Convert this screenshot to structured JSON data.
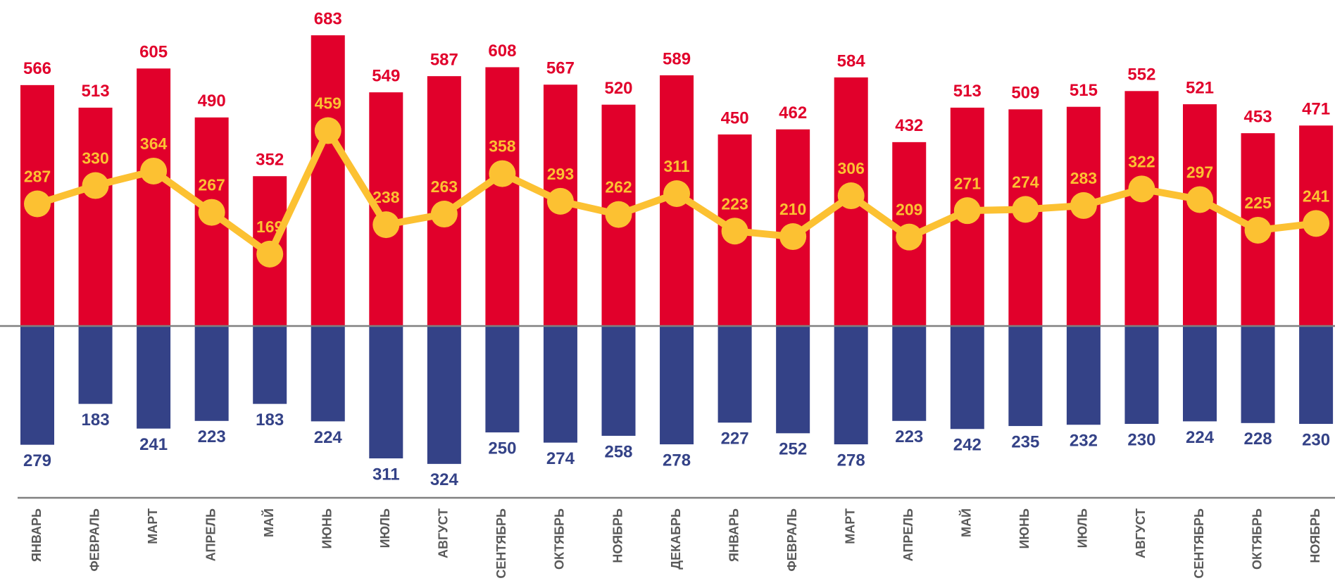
{
  "chart_data": {
    "type": "bar",
    "categories": [
      "ЯНВАРЬ",
      "ФЕВРАЛЬ",
      "МАРТ",
      "АПРЕЛЬ",
      "МАЙ",
      "ИЮНЬ",
      "ИЮЛЬ",
      "АВГУСТ",
      "СЕНТЯБРЬ",
      "ОКТЯБРЬ",
      "НОЯБРЬ",
      "ДЕКАБРЬ",
      "ЯНВАРЬ",
      "ФЕВРАЛЬ",
      "МАРТ",
      "АПРЕЛЬ",
      "МАЙ",
      "ИЮНЬ",
      "ИЮЛЬ",
      "АВГУСТ",
      "СЕНТЯБРЬ",
      "ОКТЯБРЬ",
      "НОЯБРЬ"
    ],
    "series": [
      {
        "type": "bar",
        "color": "#e1002b",
        "values": [
          566,
          513,
          605,
          490,
          352,
          683,
          549,
          587,
          608,
          567,
          520,
          589,
          450,
          462,
          584,
          432,
          513,
          509,
          515,
          552,
          521,
          453,
          471
        ]
      },
      {
        "type": "bar",
        "color": "#344287",
        "values": [
          279,
          183,
          241,
          223,
          183,
          224,
          311,
          324,
          250,
          274,
          258,
          278,
          227,
          252,
          278,
          223,
          242,
          235,
          232,
          230,
          224,
          228,
          230
        ]
      },
      {
        "type": "line",
        "color": "#fcc132",
        "values": [
          287,
          330,
          364,
          267,
          169,
          459,
          238,
          263,
          358,
          293,
          262,
          311,
          223,
          210,
          306,
          209,
          271,
          274,
          283,
          322,
          297,
          225,
          241
        ]
      }
    ]
  }
}
